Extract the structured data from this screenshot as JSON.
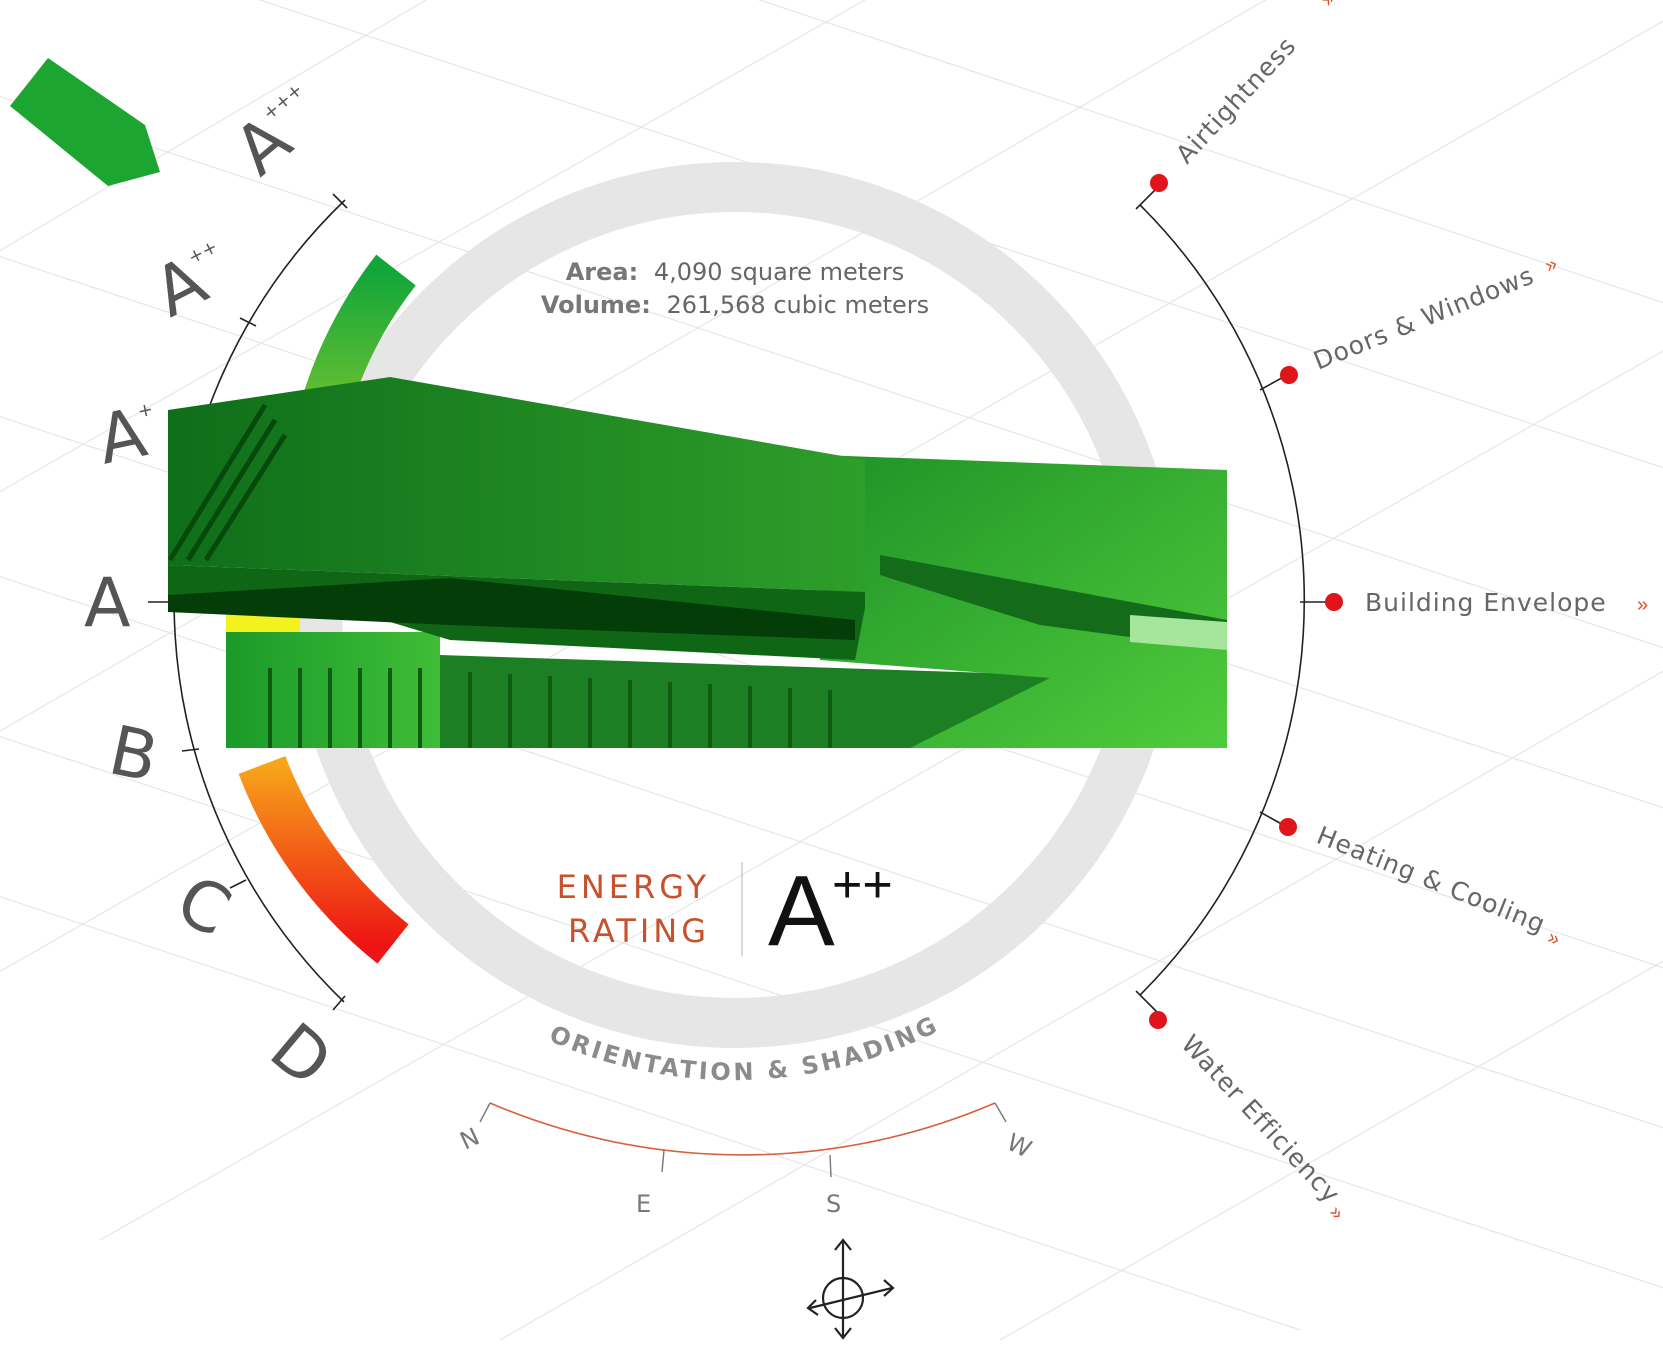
{
  "building": {
    "area_label": "Area:",
    "area_value": "4,090 square meters",
    "volume_label": "Volume:",
    "volume_value": "261,568 cubic meters"
  },
  "energy": {
    "title_line1": "ENERGY",
    "title_line2": "RATING",
    "rating_letter": "A",
    "rating_suffix": "++"
  },
  "scale": [
    {
      "letter": "A",
      "suffix": "+++"
    },
    {
      "letter": "A",
      "suffix": "++"
    },
    {
      "letter": "A",
      "suffix": "+"
    },
    {
      "letter": "A",
      "suffix": ""
    },
    {
      "letter": "B",
      "suffix": ""
    },
    {
      "letter": "C",
      "suffix": ""
    },
    {
      "letter": "D",
      "suffix": ""
    }
  ],
  "categories": [
    {
      "label": "Airtightness"
    },
    {
      "label": "Doors & Windows"
    },
    {
      "label": "Building Envelope"
    },
    {
      "label": "Heating & Cooling"
    },
    {
      "label": "Water Efficiency"
    }
  ],
  "ring_label": "ORIENTATION & SHADING",
  "compass": {
    "n": "N",
    "e": "E",
    "s": "S",
    "w": "W"
  },
  "colors": {
    "ring": "#e5e5e5",
    "good": "#1aa33a",
    "bad": "#ee1c1c",
    "warning": "#f3a21b",
    "accent": "#c9502c",
    "marker": "#e0151b",
    "building_dark": "#157a1d",
    "building_light": "#3cc43c"
  }
}
